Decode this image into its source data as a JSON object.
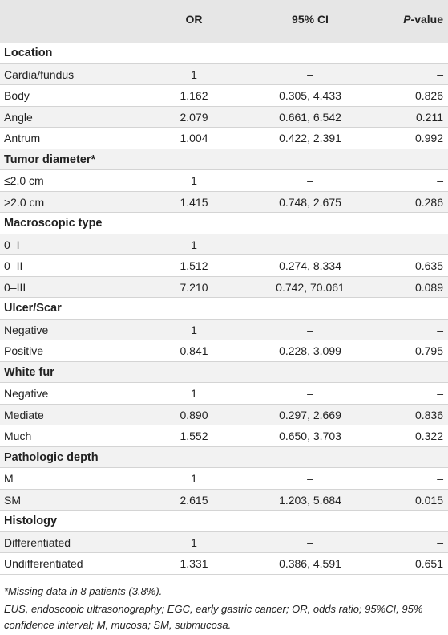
{
  "table": {
    "headers": {
      "or": "OR",
      "ci": "95% CI",
      "p_prefix": "P",
      "p_suffix": "-value"
    },
    "rows": [
      {
        "type": "section",
        "label": "Location"
      },
      {
        "type": "data",
        "label": "Cardia/fundus",
        "or": "1",
        "ci": "–",
        "p": "–"
      },
      {
        "type": "data",
        "label": "Body",
        "or": "1.162",
        "ci": "0.305, 4.433",
        "p": "0.826"
      },
      {
        "type": "data",
        "label": "Angle",
        "or": "2.079",
        "ci": "0.661, 6.542",
        "p": "0.211"
      },
      {
        "type": "data",
        "label": "Antrum",
        "or": "1.004",
        "ci": "0.422, 2.391",
        "p": "0.992"
      },
      {
        "type": "section",
        "label": "Tumor diameter*"
      },
      {
        "type": "data",
        "label": "≤2.0 cm",
        "or": "1",
        "ci": "–",
        "p": "–"
      },
      {
        "type": "data",
        "label": ">2.0 cm",
        "or": "1.415",
        "ci": "0.748, 2.675",
        "p": "0.286"
      },
      {
        "type": "section",
        "label": "Macroscopic type"
      },
      {
        "type": "data",
        "label": "0–I",
        "or": "1",
        "ci": "–",
        "p": "–"
      },
      {
        "type": "data",
        "label": "0–II",
        "or": "1.512",
        "ci": "0.274, 8.334",
        "p": "0.635"
      },
      {
        "type": "data",
        "label": "0–III",
        "or": "7.210",
        "ci": "0.742, 70.061",
        "p": "0.089"
      },
      {
        "type": "section",
        "label": "Ulcer/Scar"
      },
      {
        "type": "data",
        "label": "Negative",
        "or": "1",
        "ci": "–",
        "p": "–"
      },
      {
        "type": "data",
        "label": "Positive",
        "or": "0.841",
        "ci": "0.228, 3.099",
        "p": "0.795"
      },
      {
        "type": "section",
        "label": "White fur"
      },
      {
        "type": "data",
        "label": "Negative",
        "or": "1",
        "ci": "–",
        "p": "–"
      },
      {
        "type": "data",
        "label": "Mediate",
        "or": "0.890",
        "ci": "0.297, 2.669",
        "p": "0.836"
      },
      {
        "type": "data",
        "label": "Much",
        "or": "1.552",
        "ci": "0.650, 3.703",
        "p": "0.322"
      },
      {
        "type": "section",
        "label": "Pathologic depth"
      },
      {
        "type": "data",
        "label": "M",
        "or": "1",
        "ci": "–",
        "p": "–"
      },
      {
        "type": "data",
        "label": "SM",
        "or": "2.615",
        "ci": "1.203, 5.684",
        "p": "0.015"
      },
      {
        "type": "section",
        "label": "Histology"
      },
      {
        "type": "data",
        "label": "Differentiated",
        "or": "1",
        "ci": "–",
        "p": "–"
      },
      {
        "type": "data",
        "label": "Undifferentiated",
        "or": "1.331",
        "ci": "0.386, 4.591",
        "p": "0.651"
      }
    ]
  },
  "footnotes": {
    "missing": "*Missing data in 8 patients (3.8%).",
    "abbreviations": "EUS, endoscopic ultrasonography; EGC, early gastric cancer; OR, odds ratio; 95%CI, 95% confidence interval; M, mucosa; SM, submucosa."
  }
}
